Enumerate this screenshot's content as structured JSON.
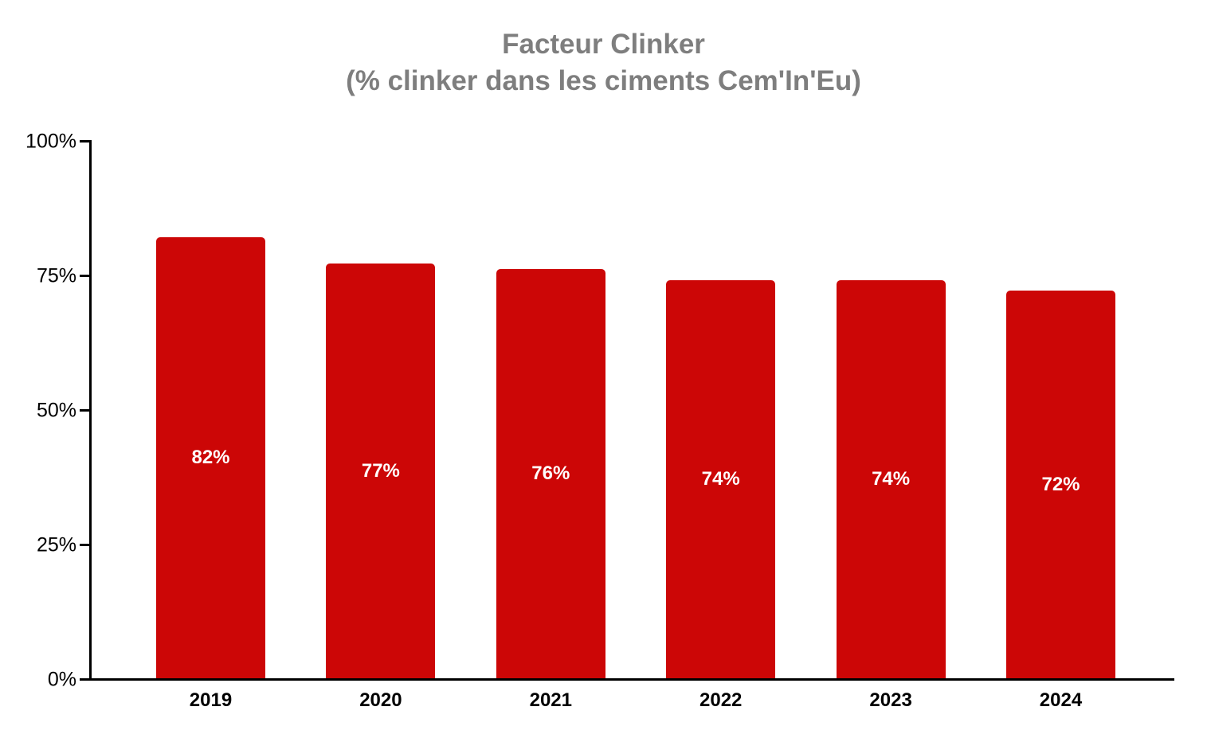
{
  "chart_data": {
    "type": "bar",
    "title": "Facteur Clinker (% clinker dans les ciments Cem'In'Eu)",
    "title_line1": "Facteur Clinker",
    "title_line2": "(% clinker dans les ciments Cem'In'Eu)",
    "categories": [
      "2019",
      "2020",
      "2021",
      "2022",
      "2023",
      "2024"
    ],
    "values": [
      82,
      77,
      76,
      74,
      74,
      72
    ],
    "value_labels": [
      "82%",
      "77%",
      "76%",
      "74%",
      "74%",
      "72%"
    ],
    "xlabel": "",
    "ylabel": "",
    "ylim": [
      0,
      100
    ],
    "yticks": [
      0,
      25,
      50,
      75,
      100
    ],
    "ytick_labels": [
      "0%",
      "25%",
      "50%",
      "75%",
      "100%"
    ],
    "grid": false,
    "legend": "none",
    "bar_color": "#CC0606",
    "value_label_color": "#FFFFFF",
    "title_color": "#7E7E7E",
    "axis_color": "#000000",
    "tick_label_color": "#000000",
    "x_label_color": "#000000"
  }
}
